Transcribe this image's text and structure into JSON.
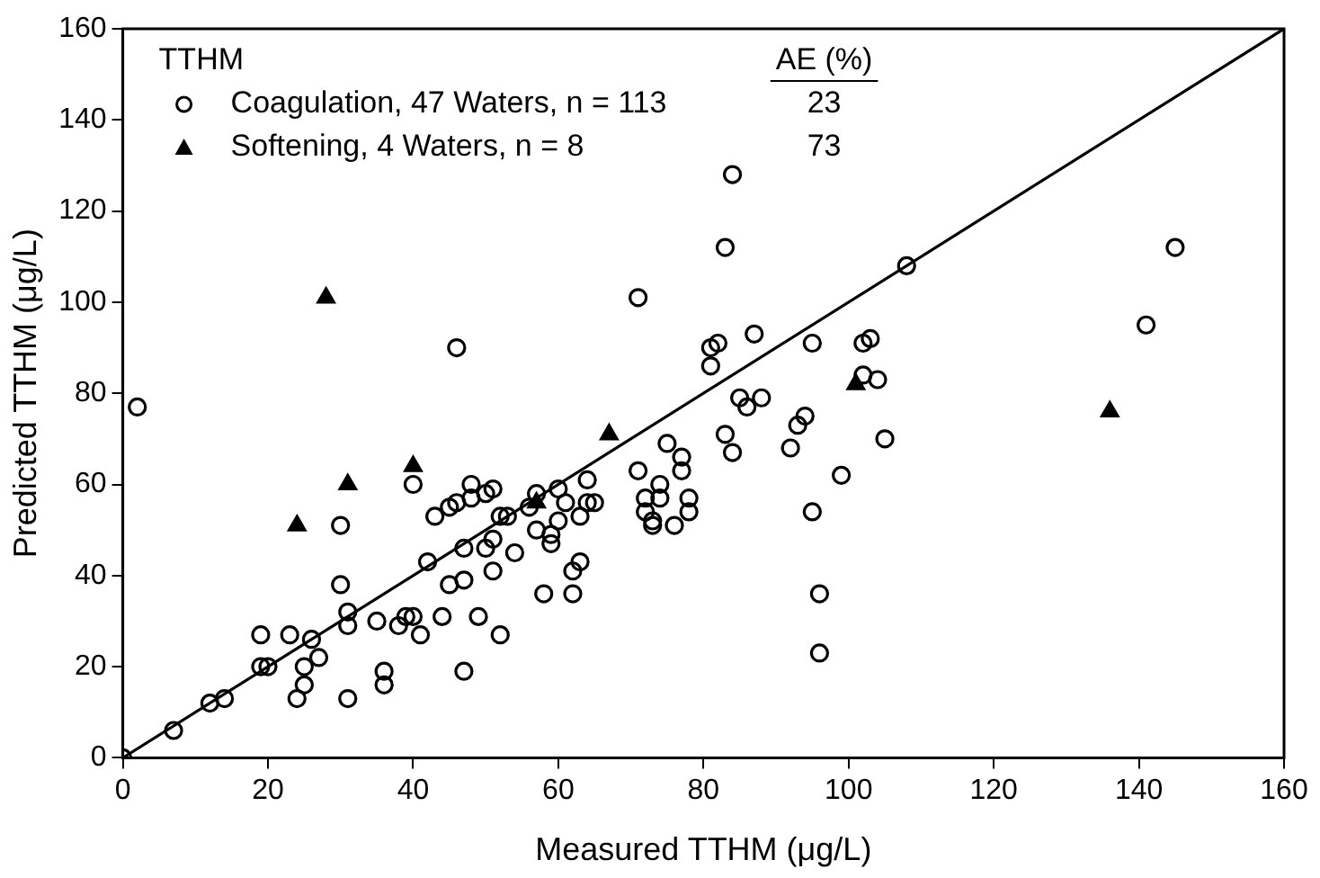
{
  "chart_data": {
    "type": "scatter",
    "xlabel": "Measured TTHM (μg/L)",
    "ylabel": "Predicted TTHM (μg/L)",
    "legend_title": "TTHM",
    "legend": "top left",
    "grid": false,
    "xlim": [
      0,
      160
    ],
    "xticks": [
      0,
      20,
      40,
      60,
      80,
      100,
      120,
      140,
      160
    ],
    "ylim": [
      0,
      160
    ],
    "yticks": [
      0,
      20,
      40,
      60,
      80,
      100,
      120,
      140,
      160
    ],
    "annotations": [
      "AE (%)",
      "23",
      "73"
    ],
    "series": [
      {
        "name": "Coagulation, 47 Waters, n = 113",
        "color": "#000000",
        "marker": "circle",
        "x": [
          0,
          2,
          7,
          12,
          14,
          19,
          19,
          20,
          23,
          24,
          25,
          25,
          26,
          27,
          30,
          30,
          31,
          31,
          31,
          35,
          36,
          36,
          38,
          39,
          40,
          40,
          41,
          42,
          43,
          44,
          45,
          45,
          46,
          46,
          47,
          47,
          47,
          48,
          48,
          49,
          50,
          50,
          51,
          51,
          51,
          52,
          52,
          53,
          54,
          56,
          57,
          57,
          58,
          59,
          59,
          60,
          60,
          61,
          62,
          62,
          63,
          63,
          64,
          64,
          65,
          71,
          71,
          72,
          72,
          73,
          73,
          74,
          74,
          75,
          76,
          77,
          78,
          78,
          77,
          81,
          81,
          82,
          83,
          83,
          84,
          84,
          85,
          86,
          87,
          88,
          92,
          93,
          94,
          95,
          95,
          96,
          96,
          99,
          102,
          102,
          103,
          104,
          105,
          108,
          141,
          145
        ],
        "values": [
          0,
          77,
          6,
          12,
          13,
          27,
          20,
          20,
          27,
          13,
          16,
          20,
          26,
          22,
          38,
          51,
          13,
          32,
          29,
          30,
          19,
          16,
          29,
          31,
          60,
          31,
          27,
          43,
          53,
          31,
          55,
          38,
          56,
          90,
          39,
          46,
          19,
          60,
          57,
          31,
          46,
          58,
          48,
          59,
          41,
          27,
          53,
          53,
          45,
          55,
          58,
          50,
          36,
          47,
          49,
          52,
          59,
          56,
          41,
          36,
          43,
          53,
          56,
          61,
          56,
          101,
          63,
          57,
          54,
          51,
          52,
          57,
          60,
          69,
          51,
          66,
          54,
          57,
          63,
          86,
          90,
          91,
          112,
          71,
          128,
          67,
          79,
          77,
          93,
          79,
          68,
          73,
          75,
          54,
          91,
          36,
          23,
          62,
          84,
          91,
          92,
          83,
          70,
          108,
          95,
          112
        ]
      },
      {
        "name": "Softening, 4 Waters, n = 8",
        "color": "#000000",
        "marker": "triangle",
        "x": [
          24,
          28,
          31,
          40,
          57,
          67,
          101,
          136
        ],
        "values": [
          51,
          101,
          60,
          64,
          56,
          71,
          82,
          76
        ]
      },
      {
        "type": "line",
        "color": "#000000",
        "marker": "none",
        "x": [
          0,
          160
        ],
        "values": [
          0,
          160
        ]
      }
    ]
  }
}
